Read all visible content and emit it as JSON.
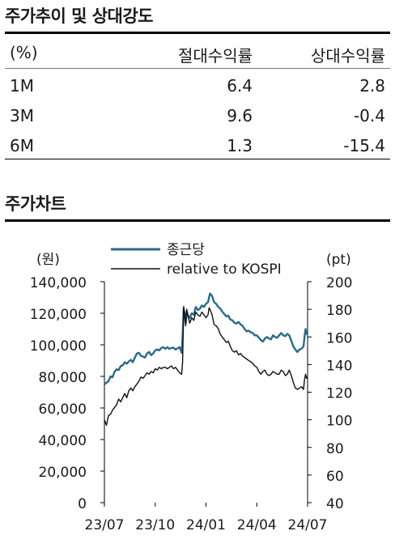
{
  "returns": {
    "title": "주가추이 및 상대강도",
    "columns": [
      "(%)",
      "절대수익률",
      "상대수익률"
    ],
    "rows": [
      {
        "period": "1M",
        "absolute": "6.4",
        "relative": "2.8"
      },
      {
        "period": "3M",
        "absolute": "9.6",
        "relative": "-0.4"
      },
      {
        "period": "6M",
        "absolute": "1.3",
        "relative": "-15.4"
      }
    ]
  },
  "chart_section": {
    "title": "주가차트"
  },
  "chart_data": {
    "type": "line",
    "left_unit": "(원)",
    "right_unit": "(pt)",
    "x_ticks": [
      "23/07",
      "23/10",
      "24/01",
      "24/04",
      "24/07"
    ],
    "left_ticks": [
      "0",
      "20,000",
      "40,000",
      "60,000",
      "80,000",
      "100,000",
      "120,000",
      "140,000"
    ],
    "right_ticks": [
      "40",
      "60",
      "80",
      "100",
      "120",
      "140",
      "160",
      "180",
      "200"
    ],
    "ylim_left": [
      0,
      140000
    ],
    "ylim_right": [
      40,
      200
    ],
    "series": [
      {
        "name": "종근당",
        "axis": "left",
        "color": "#2b6a8a",
        "points": [
          [
            0,
            75000
          ],
          [
            2,
            76000
          ],
          [
            4,
            77000
          ],
          [
            6,
            80000
          ],
          [
            8,
            79500
          ],
          [
            10,
            83000
          ],
          [
            12,
            84500
          ],
          [
            14,
            84000
          ],
          [
            16,
            86500
          ],
          [
            18,
            87000
          ],
          [
            20,
            89000
          ],
          [
            22,
            88000
          ],
          [
            24,
            89500
          ],
          [
            26,
            90500
          ],
          [
            28,
            89000
          ],
          [
            30,
            92000
          ],
          [
            32,
            94500
          ],
          [
            34,
            95000
          ],
          [
            36,
            93000
          ],
          [
            38,
            92500
          ],
          [
            40,
            92000
          ],
          [
            42,
            94500
          ],
          [
            44,
            95500
          ],
          [
            46,
            93500
          ],
          [
            48,
            94500
          ],
          [
            50,
            96500
          ],
          [
            52,
            97000
          ],
          [
            54,
            96500
          ],
          [
            56,
            98000
          ],
          [
            58,
            98500
          ],
          [
            60,
            97500
          ],
          [
            62,
            98500
          ],
          [
            64,
            97500
          ],
          [
            66,
            98000
          ],
          [
            68,
            98200
          ],
          [
            70,
            97000
          ],
          [
            72,
            97800
          ],
          [
            74,
            98500
          ],
          [
            76,
            95000
          ],
          [
            77,
            105000
          ],
          [
            78,
            123000
          ],
          [
            79,
            120000
          ],
          [
            80,
            114000
          ],
          [
            81,
            121000
          ],
          [
            82,
            119000
          ],
          [
            84,
            117000
          ],
          [
            86,
            120000
          ],
          [
            88,
            119000
          ],
          [
            90,
            124000
          ],
          [
            92,
            122000
          ],
          [
            94,
            123000
          ],
          [
            96,
            125000
          ],
          [
            98,
            124000
          ],
          [
            100,
            126000
          ],
          [
            102,
            127000
          ],
          [
            103,
            130000
          ],
          [
            104,
            132500
          ],
          [
            106,
            131000
          ],
          [
            108,
            127000
          ],
          [
            110,
            126000
          ],
          [
            112,
            124000
          ],
          [
            114,
            123000
          ],
          [
            116,
            121000
          ],
          [
            118,
            119500
          ],
          [
            120,
            118000
          ],
          [
            122,
            118500
          ],
          [
            124,
            116000
          ],
          [
            126,
            115500
          ],
          [
            128,
            114000
          ],
          [
            130,
            113500
          ],
          [
            132,
            114500
          ],
          [
            134,
            113000
          ],
          [
            136,
            112000
          ],
          [
            138,
            110000
          ],
          [
            140,
            108500
          ],
          [
            142,
            109000
          ],
          [
            144,
            108000
          ],
          [
            146,
            107500
          ],
          [
            148,
            106000
          ],
          [
            150,
            106000
          ],
          [
            152,
            104500
          ],
          [
            154,
            103000
          ],
          [
            156,
            102000
          ],
          [
            158,
            104000
          ],
          [
            160,
            105000
          ],
          [
            162,
            104000
          ],
          [
            164,
            103500
          ],
          [
            166,
            106000
          ],
          [
            168,
            105000
          ],
          [
            170,
            104500
          ],
          [
            172,
            106000
          ],
          [
            174,
            107500
          ],
          [
            176,
            106000
          ],
          [
            178,
            105500
          ],
          [
            180,
            107000
          ],
          [
            182,
            106000
          ],
          [
            184,
            102500
          ],
          [
            186,
            99000
          ],
          [
            188,
            97000
          ],
          [
            190,
            95500
          ],
          [
            192,
            97000
          ],
          [
            194,
            97500
          ],
          [
            196,
            99000
          ],
          [
            197,
            105000
          ],
          [
            198,
            110000
          ],
          [
            199,
            107000
          ],
          [
            200,
            107500
          ]
        ]
      },
      {
        "name": "relative to KOSPI",
        "axis": "right",
        "color": "#111111",
        "points": [
          [
            0,
            100
          ],
          [
            2,
            96
          ],
          [
            4,
            103
          ],
          [
            6,
            104
          ],
          [
            8,
            107
          ],
          [
            10,
            109
          ],
          [
            12,
            111
          ],
          [
            14,
            115
          ],
          [
            16,
            113
          ],
          [
            18,
            116
          ],
          [
            20,
            119
          ],
          [
            22,
            116
          ],
          [
            24,
            121
          ],
          [
            26,
            123
          ],
          [
            28,
            121
          ],
          [
            30,
            124
          ],
          [
            32,
            126
          ],
          [
            34,
            128
          ],
          [
            36,
            131
          ],
          [
            38,
            130
          ],
          [
            40,
            132
          ],
          [
            42,
            134
          ],
          [
            44,
            133
          ],
          [
            46,
            135
          ],
          [
            48,
            134
          ],
          [
            50,
            137
          ],
          [
            52,
            136
          ],
          [
            54,
            138
          ],
          [
            56,
            137
          ],
          [
            58,
            138
          ],
          [
            60,
            138
          ],
          [
            62,
            137
          ],
          [
            64,
            138
          ],
          [
            66,
            139
          ],
          [
            68,
            137
          ],
          [
            70,
            138
          ],
          [
            72,
            136
          ],
          [
            74,
            134
          ],
          [
            76,
            133
          ],
          [
            77,
            142
          ],
          [
            78,
            182
          ],
          [
            79,
            176
          ],
          [
            80,
            168
          ],
          [
            81,
            180
          ],
          [
            82,
            176
          ],
          [
            84,
            170
          ],
          [
            86,
            174
          ],
          [
            88,
            172
          ],
          [
            90,
            178
          ],
          [
            92,
            176
          ],
          [
            94,
            175
          ],
          [
            96,
            178
          ],
          [
            98,
            176
          ],
          [
            100,
            174
          ],
          [
            102,
            176
          ],
          [
            103,
            181
          ],
          [
            104,
            180
          ],
          [
            106,
            176
          ],
          [
            108,
            169
          ],
          [
            110,
            168
          ],
          [
            112,
            166
          ],
          [
            114,
            162
          ],
          [
            116,
            160
          ],
          [
            118,
            158
          ],
          [
            120,
            156
          ],
          [
            122,
            157
          ],
          [
            124,
            153
          ],
          [
            126,
            150
          ],
          [
            128,
            149
          ],
          [
            130,
            150
          ],
          [
            132,
            147
          ],
          [
            134,
            148
          ],
          [
            136,
            146
          ],
          [
            138,
            145
          ],
          [
            140,
            144
          ],
          [
            142,
            143
          ],
          [
            144,
            142
          ],
          [
            146,
            141
          ],
          [
            148,
            139
          ],
          [
            150,
            138
          ],
          [
            152,
            135
          ],
          [
            154,
            133
          ],
          [
            156,
            135
          ],
          [
            158,
            136
          ],
          [
            160,
            133
          ],
          [
            162,
            132
          ],
          [
            164,
            133
          ],
          [
            166,
            135
          ],
          [
            168,
            134
          ],
          [
            170,
            133
          ],
          [
            172,
            133
          ],
          [
            174,
            136
          ],
          [
            176,
            135
          ],
          [
            178,
            132
          ],
          [
            180,
            133
          ],
          [
            182,
            136
          ],
          [
            184,
            132
          ],
          [
            186,
            127
          ],
          [
            188,
            123
          ],
          [
            190,
            122
          ],
          [
            192,
            123
          ],
          [
            194,
            124
          ],
          [
            196,
            122
          ],
          [
            197,
            129
          ],
          [
            198,
            133
          ],
          [
            199,
            130
          ],
          [
            200,
            131
          ]
        ]
      }
    ]
  }
}
